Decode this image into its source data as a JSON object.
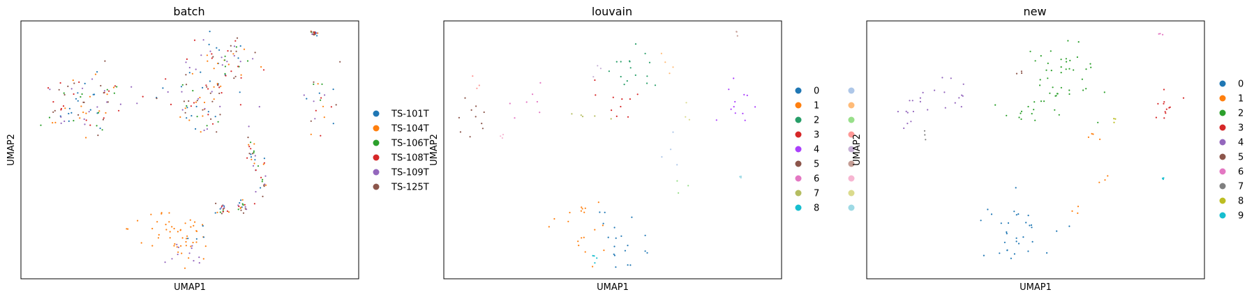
{
  "chart_data": [
    {
      "type": "scatter",
      "title": "batch",
      "xlabel": "UMAP1",
      "ylabel": "UMAP2",
      "xticks": false,
      "yticks": false,
      "grid": false,
      "legend_position": "right",
      "legend_columns": 1,
      "legend": [
        {
          "label": "TS-101T",
          "color": "#1f77b4"
        },
        {
          "label": "TS-104T",
          "color": "#ff7f0e"
        },
        {
          "label": "TS-106T",
          "color": "#2ca02c"
        },
        {
          "label": "TS-108T",
          "color": "#d62728"
        },
        {
          "label": "TS-109T",
          "color": "#9467bd"
        },
        {
          "label": "TS-125T",
          "color": "#8c564b"
        }
      ]
    },
    {
      "type": "scatter",
      "title": "louvain",
      "xlabel": "UMAP1",
      "ylabel": "UMAP2",
      "xticks": false,
      "yticks": false,
      "grid": false,
      "legend_position": "right",
      "legend_columns": 2,
      "legend": [
        {
          "label": "0",
          "color": "#1f77b4"
        },
        {
          "label": "1",
          "color": "#ff7f0e"
        },
        {
          "label": "2",
          "color": "#279e68"
        },
        {
          "label": "3",
          "color": "#d62728"
        },
        {
          "label": "4",
          "color": "#aa40fc"
        },
        {
          "label": "5",
          "color": "#8c564b"
        },
        {
          "label": "6",
          "color": "#e377c2"
        },
        {
          "label": "7",
          "color": "#b5bd61"
        },
        {
          "label": "8",
          "color": "#17becf"
        },
        {
          "label": "",
          "color": "#aec7e8"
        },
        {
          "label": "",
          "color": "#ffbb78"
        },
        {
          "label": "",
          "color": "#98df8a"
        },
        {
          "label": "",
          "color": "#ff9896"
        },
        {
          "label": "",
          "color": "#c5b0d5"
        },
        {
          "label": "",
          "color": "#c49c94"
        },
        {
          "label": "",
          "color": "#f7b6d2"
        },
        {
          "label": "",
          "color": "#dbdb8d"
        },
        {
          "label": "",
          "color": "#9edae5"
        }
      ]
    },
    {
      "type": "scatter",
      "title": "new",
      "xlabel": "UMAP1",
      "ylabel": "UMAP2",
      "xticks": false,
      "yticks": false,
      "grid": false,
      "legend_position": "right",
      "legend_columns": 1,
      "legend": [
        {
          "label": "0",
          "color": "#1f77b4"
        },
        {
          "label": "1",
          "color": "#ff7f0e"
        },
        {
          "label": "2",
          "color": "#2ca02c"
        },
        {
          "label": "3",
          "color": "#d62728"
        },
        {
          "label": "4",
          "color": "#9467bd"
        },
        {
          "label": "5",
          "color": "#8c564b"
        },
        {
          "label": "6",
          "color": "#e377c2"
        },
        {
          "label": "7",
          "color": "#7f7f7f"
        },
        {
          "label": "8",
          "color": "#bcbd22"
        },
        {
          "label": "9",
          "color": "#17becf"
        }
      ]
    }
  ]
}
